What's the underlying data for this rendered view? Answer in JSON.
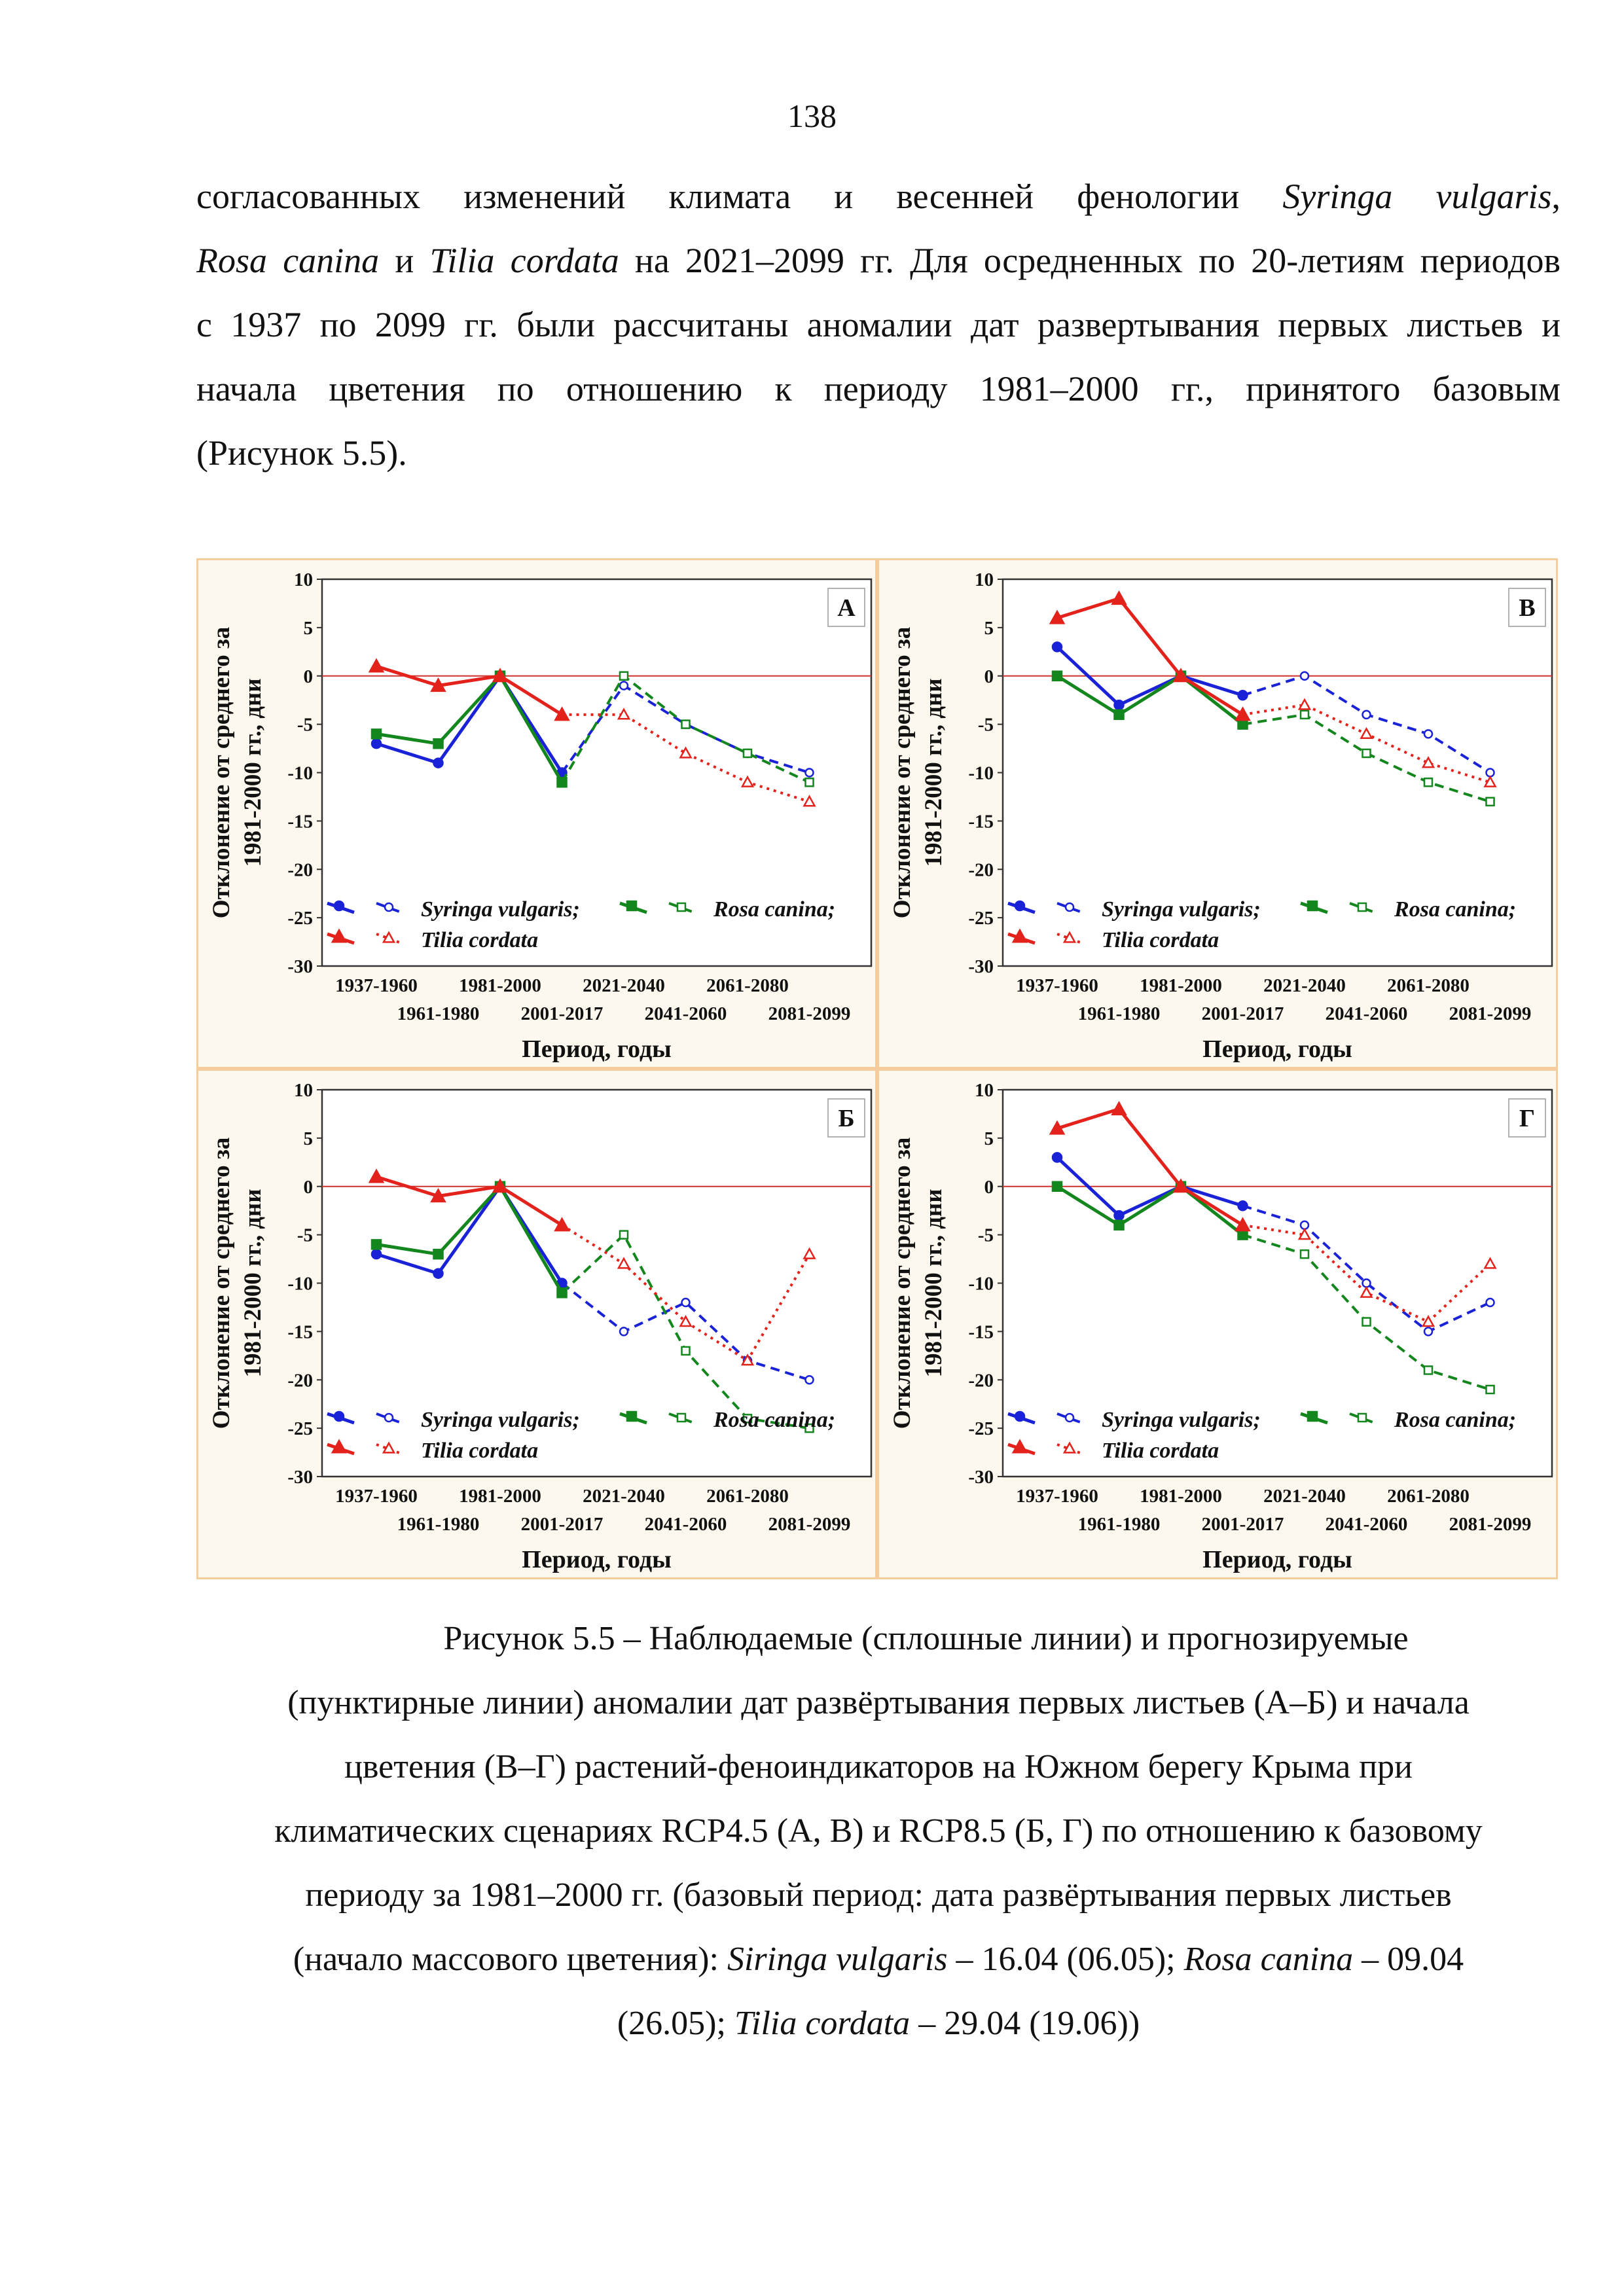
{
  "page_number": 138,
  "paragraph": {
    "lines": [
      [
        {
          "text": "согласованных изменений климата и весенней фенологии "
        },
        {
          "text": "Syringa vulgaris",
          "italic": true
        },
        {
          "text": ","
        }
      ],
      [
        {
          "text": "Rosa canina",
          "italic": true
        },
        {
          "text": " и "
        },
        {
          "text": "Tilia cordata",
          "italic": true
        },
        {
          "text": " на 2021–2099 гг. Для осредненных по 20-летиям периодов"
        }
      ],
      [
        {
          "text": "с 1937 по 2099 гг. были рассчитаны аномалии дат развертывания первых листьев и"
        }
      ],
      [
        {
          "text": "начала цветения по отношению к периоду 1981–2000 гг., принятого базовым"
        }
      ],
      [
        {
          "text": "(Рисунок 5.5)."
        }
      ]
    ]
  },
  "chart_data": [
    {
      "type": "line",
      "panel_label": "А",
      "categories": [
        "1937-1960",
        "1961-1980",
        "1981-2000",
        "2001-2017",
        "2021-2040",
        "2041-2060",
        "2061-2080",
        "2081-2099"
      ],
      "xlabel": "Период, годы",
      "ylabel": [
        "Отклонение от среднего за",
        "1981-2000 гг., дни"
      ],
      "ylim": [
        -30,
        10
      ],
      "yticks": [
        -30,
        -25,
        -20,
        -15,
        -10,
        -5,
        0,
        5,
        10
      ],
      "hline": 0,
      "hline_color": "#d0312d",
      "series": [
        {
          "name": "Syringa vulgaris;",
          "color": "#1a22d8",
          "marker": "circle",
          "projected_dash": "dashed",
          "observed": [
            -7,
            -9,
            0,
            -10
          ],
          "projected": [
            -1,
            -5,
            -8,
            -10
          ]
        },
        {
          "name": "Rosa canina;",
          "color": "#14861e",
          "marker": "square",
          "projected_dash": "dashed",
          "observed": [
            -6,
            -7,
            0,
            -11
          ],
          "projected": [
            0,
            -5,
            -8,
            -11
          ]
        },
        {
          "name": "Tilia cordata",
          "color": "#e3221c",
          "marker": "triangle",
          "projected_dash": "dotted",
          "observed": [
            1,
            -1,
            0,
            -4
          ],
          "projected": [
            -4,
            -8,
            -11,
            -13
          ]
        }
      ]
    },
    {
      "type": "line",
      "panel_label": "В",
      "categories": [
        "1937-1960",
        "1961-1980",
        "1981-2000",
        "2001-2017",
        "2021-2040",
        "2041-2060",
        "2061-2080",
        "2081-2099"
      ],
      "xlabel": "Период, годы",
      "ylabel": [
        "Отклонение от среднего за",
        "1981-2000 гг., дни"
      ],
      "ylim": [
        -30,
        10
      ],
      "yticks": [
        -30,
        -25,
        -20,
        -15,
        -10,
        -5,
        0,
        5,
        10
      ],
      "hline": 0,
      "hline_color": "#d0312d",
      "series": [
        {
          "name": "Syringa vulgaris;",
          "color": "#1a22d8",
          "marker": "circle",
          "projected_dash": "dashed",
          "observed": [
            3,
            -3,
            0,
            -2
          ],
          "projected": [
            0,
            -4,
            -6,
            -10
          ]
        },
        {
          "name": "Rosa canina;",
          "color": "#14861e",
          "marker": "square",
          "projected_dash": "dashed",
          "observed": [
            0,
            -4,
            0,
            -5
          ],
          "projected": [
            -4,
            -8,
            -11,
            -13
          ]
        },
        {
          "name": "Tilia cordata",
          "color": "#e3221c",
          "marker": "triangle",
          "projected_dash": "dotted",
          "observed": [
            6,
            8,
            0,
            -4
          ],
          "projected": [
            -3,
            -6,
            -9,
            -11
          ]
        }
      ]
    },
    {
      "type": "line",
      "panel_label": "Б",
      "categories": [
        "1937-1960",
        "1961-1980",
        "1981-2000",
        "2001-2017",
        "2021-2040",
        "2041-2060",
        "2061-2080",
        "2081-2099"
      ],
      "xlabel": "Период, годы",
      "ylabel": [
        "Отклонение от среднего за",
        "1981-2000 гг., дни"
      ],
      "ylim": [
        -30,
        10
      ],
      "yticks": [
        -30,
        -25,
        -20,
        -15,
        -10,
        -5,
        0,
        5,
        10
      ],
      "hline": 0,
      "hline_color": "#d0312d",
      "series": [
        {
          "name": "Syringa vulgaris;",
          "color": "#1a22d8",
          "marker": "circle",
          "projected_dash": "dashed",
          "observed": [
            -7,
            -9,
            0,
            -10
          ],
          "projected": [
            -15,
            -12,
            -18,
            -20
          ]
        },
        {
          "name": "Rosa canina;",
          "color": "#14861e",
          "marker": "square",
          "projected_dash": "dashed",
          "observed": [
            -6,
            -7,
            0,
            -11
          ],
          "projected": [
            -5,
            -17,
            -24,
            -25
          ]
        },
        {
          "name": "Tilia cordata",
          "color": "#e3221c",
          "marker": "triangle",
          "projected_dash": "dotted",
          "observed": [
            1,
            -1,
            0,
            -4
          ],
          "projected": [
            -8,
            -14,
            -18,
            -7
          ]
        }
      ]
    },
    {
      "type": "line",
      "panel_label": "Г",
      "categories": [
        "1937-1960",
        "1961-1980",
        "1981-2000",
        "2001-2017",
        "2021-2040",
        "2041-2060",
        "2061-2080",
        "2081-2099"
      ],
      "xlabel": "Период, годы",
      "ylabel": [
        "Отклонение от среднего за",
        "1981-2000 гг., дни"
      ],
      "ylim": [
        -30,
        10
      ],
      "yticks": [
        -30,
        -25,
        -20,
        -15,
        -10,
        -5,
        0,
        5,
        10
      ],
      "hline": 0,
      "hline_color": "#d0312d",
      "series": [
        {
          "name": "Syringa vulgaris;",
          "color": "#1a22d8",
          "marker": "circle",
          "projected_dash": "dashed",
          "observed": [
            3,
            -3,
            0,
            -2
          ],
          "projected": [
            -4,
            -10,
            -15,
            -12
          ]
        },
        {
          "name": "Rosa canina;",
          "color": "#14861e",
          "marker": "square",
          "projected_dash": "dashed",
          "observed": [
            0,
            -4,
            0,
            -5
          ],
          "projected": [
            -7,
            -14,
            -19,
            -21
          ]
        },
        {
          "name": "Tilia cordata",
          "color": "#e3221c",
          "marker": "triangle",
          "projected_dash": "dotted",
          "observed": [
            6,
            8,
            0,
            -4
          ],
          "projected": [
            -5,
            -11,
            -14,
            -8
          ]
        }
      ]
    }
  ],
  "caption": {
    "lines": [
      [
        {
          "text": "Рисунок 5.5 – Наблюдаемые (сплошные линии) и прогнозируемые"
        }
      ],
      [
        {
          "text": "(пунктирные линии) аномалии дат развёртывания первых листьев (А–Б) и начала"
        }
      ],
      [
        {
          "text": "цветения (В–Г) растений-феноиндикаторов на Южном берегу Крыма при"
        }
      ],
      [
        {
          "text": "климатических сценариях RCP4.5 (А, В) и RCP8.5 (Б, Г) по отношению к базовому"
        }
      ],
      [
        {
          "text": "периоду за 1981–2000 гг. (базовый период: дата развёртывания первых листьев"
        }
      ],
      [
        {
          "text": "(начало массового цветения): "
        },
        {
          "text": "Siringa vulgaris",
          "italic": true
        },
        {
          "text": " – 16.04 (06.05); "
        },
        {
          "text": "Rosa canina",
          "italic": true
        },
        {
          "text": " – 09.04"
        }
      ],
      [
        {
          "text": "(26.05); "
        },
        {
          "text": "Tilia cordata",
          "italic": true
        },
        {
          "text": " – 29.04 (19.06))"
        }
      ]
    ]
  }
}
